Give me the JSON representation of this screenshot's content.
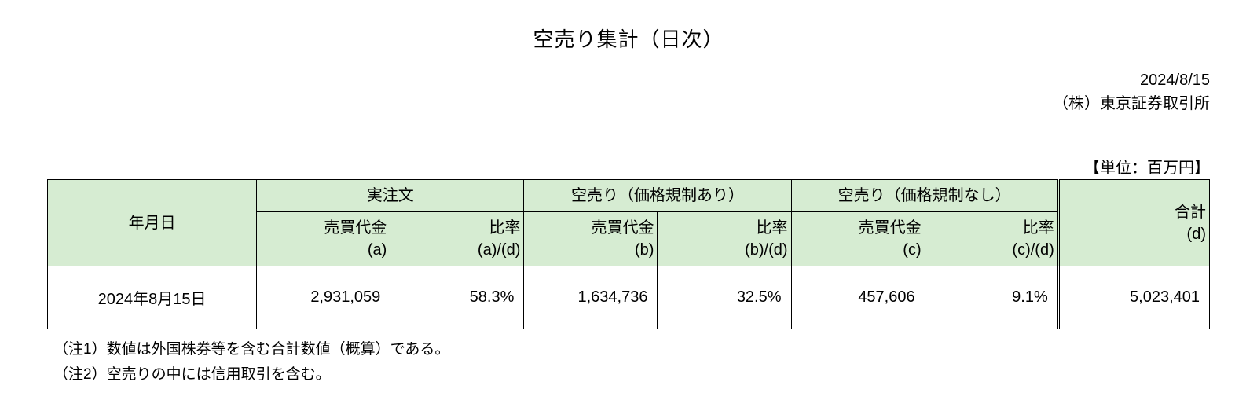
{
  "title": "空売り集計（日次）",
  "meta": {
    "date": "2024/8/15",
    "issuer": "（株）東京証券取引所"
  },
  "unit_label": "【単位：百万円】",
  "table": {
    "header": {
      "date": "年月日",
      "group1": "実注文",
      "group2": "空売り（価格規制あり）",
      "group3": "空売り（価格規制なし）",
      "total": "合計\n(d)",
      "amount_a": "売買代金\n(a)",
      "ratio_a": "比率\n(a)/(d)",
      "amount_b": "売買代金\n(b)",
      "ratio_b": "比率\n(b)/(d)",
      "amount_c": "売買代金\n(c)",
      "ratio_c": "比率\n(c)/(d)"
    },
    "row": {
      "date": "2024年8月15日",
      "amount_a": "2,931,059",
      "ratio_a": "58.3%",
      "amount_b": "1,634,736",
      "ratio_b": "32.5%",
      "amount_c": "457,606",
      "ratio_c": "9.1%",
      "total": "5,023,401"
    }
  },
  "notes": {
    "n1": "（注1）数値は外国株券等を含む合計数値（概算）である。",
    "n2": "（注2）空売りの中には信用取引を含む。"
  }
}
